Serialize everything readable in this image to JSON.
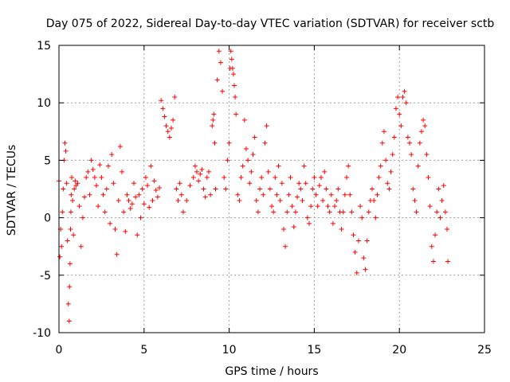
{
  "chart_data": {
    "type": "scatter",
    "title": "Day 075 of 2022, Sidereal Day-to-day VTEC variation (SDTVAR) for receiver sctb",
    "xlabel": "GPS time / hours",
    "ylabel": "SDTVAR / TECUs",
    "xlim": [
      0,
      25
    ],
    "ylim": [
      -10,
      15
    ],
    "xticks": [
      0,
      5,
      10,
      15,
      20,
      25
    ],
    "xtick_labels": [
      "0",
      "5",
      "10",
      "15",
      "20",
      "25"
    ],
    "yticks": [
      -10,
      -5,
      0,
      5,
      10,
      15
    ],
    "ytick_labels": [
      "-10",
      "-5",
      "0",
      "5",
      "10",
      "15"
    ],
    "grid": true,
    "marker": "+",
    "color": "#ff0000",
    "series": [
      {
        "name": "SDTVAR",
        "x": [
          0.0,
          0.05,
          0.1,
          0.15,
          0.2,
          0.25,
          0.3,
          0.35,
          0.4,
          0.45,
          0.5,
          0.55,
          0.6,
          0.62,
          0.65,
          0.68,
          0.7,
          0.72,
          0.75,
          0.8,
          0.85,
          0.9,
          0.95,
          1.0,
          1.1,
          1.2,
          1.3,
          1.4,
          1.5,
          1.6,
          1.7,
          1.8,
          1.9,
          2.0,
          2.1,
          2.2,
          2.3,
          2.4,
          2.5,
          2.6,
          2.7,
          2.8,
          2.9,
          3.0,
          3.1,
          3.2,
          3.3,
          3.4,
          3.5,
          3.6,
          3.7,
          3.8,
          3.9,
          4.0,
          4.1,
          4.2,
          4.3,
          4.4,
          4.5,
          4.6,
          4.7,
          4.8,
          4.9,
          5.0,
          5.1,
          5.2,
          5.3,
          5.4,
          5.5,
          5.6,
          5.7,
          5.8,
          5.9,
          6.0,
          6.1,
          6.2,
          6.3,
          6.4,
          6.5,
          6.6,
          6.7,
          6.8,
          6.9,
          7.0,
          7.1,
          7.2,
          7.3,
          7.5,
          7.7,
          7.9,
          8.0,
          8.1,
          8.2,
          8.3,
          8.4,
          8.5,
          8.6,
          8.7,
          8.8,
          8.9,
          9.0,
          9.05,
          9.1,
          9.15,
          9.2,
          9.3,
          9.4,
          9.5,
          9.6,
          9.7,
          9.8,
          9.9,
          10.0,
          10.05,
          10.1,
          10.15,
          10.2,
          10.25,
          10.3,
          10.35,
          10.4,
          10.5,
          10.6,
          10.7,
          10.8,
          10.9,
          11.0,
          11.1,
          11.2,
          11.3,
          11.4,
          11.5,
          11.6,
          11.7,
          11.8,
          11.9,
          12.0,
          12.1,
          12.2,
          12.3,
          12.4,
          12.5,
          12.6,
          12.7,
          12.8,
          12.9,
          13.0,
          13.1,
          13.2,
          13.3,
          13.4,
          13.5,
          13.6,
          13.7,
          13.8,
          13.9,
          14.0,
          14.1,
          14.2,
          14.3,
          14.4,
          14.5,
          14.6,
          14.7,
          14.8,
          14.9,
          15.0,
          15.1,
          15.2,
          15.3,
          15.4,
          15.5,
          15.6,
          15.7,
          15.8,
          15.9,
          16.0,
          16.1,
          16.2,
          16.3,
          16.4,
          16.5,
          16.6,
          16.7,
          16.8,
          16.9,
          17.0,
          17.1,
          17.2,
          17.3,
          17.4,
          17.5,
          17.6,
          17.7,
          17.8,
          17.9,
          18.0,
          18.1,
          18.2,
          18.3,
          18.4,
          18.5,
          18.6,
          18.7,
          18.8,
          18.9,
          19.0,
          19.1,
          19.2,
          19.3,
          19.4,
          19.5,
          19.6,
          19.7,
          19.8,
          19.9,
          20.0,
          20.1,
          20.2,
          20.3,
          20.4,
          20.5,
          20.6,
          20.7,
          20.8,
          20.9,
          21.0,
          21.1,
          21.2,
          21.3,
          21.4,
          21.5,
          21.6,
          21.7,
          21.8,
          21.9,
          22.0,
          22.1,
          22.2,
          22.3,
          22.4,
          22.5,
          22.6,
          22.7,
          22.8,
          22.85
        ],
        "y": [
          3.2,
          -3.4,
          -1.0,
          -2.5,
          0.5,
          2.5,
          5.0,
          6.5,
          5.8,
          3.0,
          -2.0,
          -7.5,
          -9.0,
          -6.0,
          -4.0,
          -1.0,
          0.5,
          2.0,
          3.5,
          1.5,
          -1.5,
          2.5,
          3.2,
          2.8,
          3.0,
          1.0,
          -2.5,
          0.0,
          1.8,
          3.5,
          4.0,
          2.0,
          5.0,
          4.2,
          3.5,
          2.8,
          1.0,
          4.6,
          3.5,
          2.0,
          0.5,
          2.5,
          4.5,
          -0.5,
          5.5,
          3.0,
          -1.0,
          -3.2,
          1.5,
          6.2,
          4.0,
          0.5,
          -1.2,
          2.0,
          1.5,
          0.8,
          1.2,
          3.0,
          1.8,
          -1.5,
          2.0,
          0.0,
          2.5,
          1.2,
          3.5,
          2.8,
          0.9,
          4.5,
          1.5,
          3.2,
          2.4,
          1.8,
          2.6,
          10.2,
          9.5,
          8.8,
          8.0,
          7.5,
          7.0,
          7.8,
          8.5,
          10.5,
          2.5,
          1.5,
          3.0,
          2.0,
          0.5,
          1.5,
          2.8,
          3.5,
          4.5,
          4.0,
          3.2,
          3.8,
          4.2,
          2.5,
          1.8,
          3.5,
          4.0,
          2.0,
          8.0,
          8.5,
          9.0,
          6.5,
          2.5,
          12.0,
          14.5,
          13.5,
          11.0,
          3.5,
          2.5,
          5.0,
          6.5,
          13.0,
          14.5,
          13.8,
          13.0,
          12.5,
          11.5,
          10.5,
          9.0,
          2.0,
          1.5,
          3.5,
          4.5,
          8.5,
          6.0,
          5.0,
          3.0,
          4.0,
          5.5,
          7.0,
          1.5,
          0.5,
          2.5,
          3.5,
          2.0,
          6.5,
          8.0,
          4.0,
          2.5,
          1.0,
          0.5,
          3.5,
          2.0,
          4.5,
          1.5,
          3.0,
          -1.0,
          -2.5,
          0.5,
          2.0,
          3.5,
          1.0,
          -0.8,
          0.5,
          1.8,
          3.0,
          2.5,
          1.5,
          4.5,
          3.0,
          0.0,
          -0.5,
          1.0,
          2.5,
          3.5,
          2.0,
          1.0,
          2.8,
          3.5,
          1.5,
          4.0,
          2.5,
          1.0,
          0.5,
          2.0,
          -0.5,
          1.0,
          1.5,
          2.5,
          0.5,
          -1.0,
          0.5,
          2.0,
          3.5,
          4.5,
          2.0,
          0.5,
          -1.5,
          -3.0,
          -4.8,
          -2.0,
          1.0,
          0.0,
          -3.5,
          -4.5,
          -2.0,
          0.5,
          1.5,
          2.5,
          1.5,
          0.0,
          2.0,
          3.5,
          4.5,
          6.5,
          7.5,
          5.0,
          3.0,
          2.5,
          4.0,
          5.5,
          7.0,
          9.5,
          10.5,
          9.0,
          8.0,
          10.5,
          11.0,
          10.0,
          7.0,
          6.5,
          5.5,
          2.5,
          1.5,
          0.5,
          4.5,
          6.5,
          7.5,
          8.5,
          8.0,
          5.5,
          3.5,
          1.0,
          -2.5,
          -3.8,
          -1.5,
          0.5,
          2.5,
          0.0,
          1.5,
          2.8,
          0.5,
          -1.0,
          -3.8
        ]
      }
    ]
  }
}
